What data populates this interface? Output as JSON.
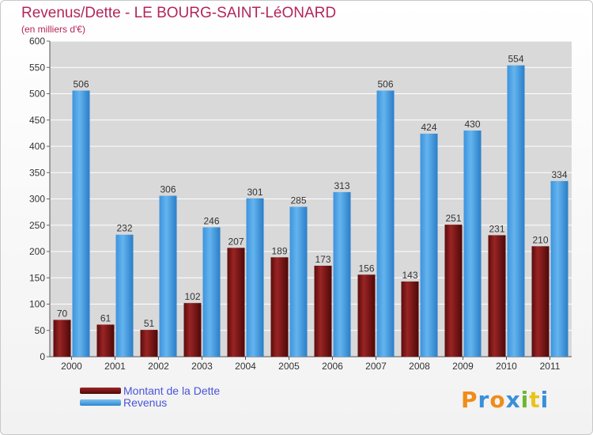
{
  "title": "Revenus/Dette - LE BOURG-SAINT-LéONARD",
  "subtitle": "(en milliers d'€)",
  "legend": {
    "debt_label": "Montant de la Dette",
    "revenue_label": "Revenus"
  },
  "logo": {
    "letters": [
      "P",
      "r",
      "o",
      "x",
      "i",
      "t",
      "i"
    ]
  },
  "colors": {
    "debt": "#7a1515",
    "revenue": "#4aa3e6",
    "title": "#b3265a",
    "legend_text": "#4a55d8",
    "logo": [
      "#f08c1a",
      "#3a8fd8",
      "#f08c1a",
      "#3a8fd8",
      "#6bb830",
      "#e8c41a",
      "#3a8fd8"
    ]
  },
  "chart_data": {
    "type": "bar",
    "categories": [
      "2000",
      "2001",
      "2002",
      "2003",
      "2004",
      "2005",
      "2006",
      "2007",
      "2008",
      "2009",
      "2010",
      "2011"
    ],
    "series": [
      {
        "name": "Montant de la Dette",
        "values": [
          70,
          61,
          51,
          102,
          207,
          189,
          173,
          156,
          143,
          251,
          231,
          210
        ]
      },
      {
        "name": "Revenus",
        "values": [
          506,
          232,
          306,
          246,
          301,
          285,
          313,
          506,
          424,
          430,
          554,
          334
        ]
      }
    ],
    "ylim": [
      0,
      600
    ],
    "yticks": [
      0,
      50,
      100,
      150,
      200,
      250,
      300,
      350,
      400,
      450,
      500,
      550,
      600
    ],
    "grid": true,
    "legend_position": "bottom-left"
  }
}
